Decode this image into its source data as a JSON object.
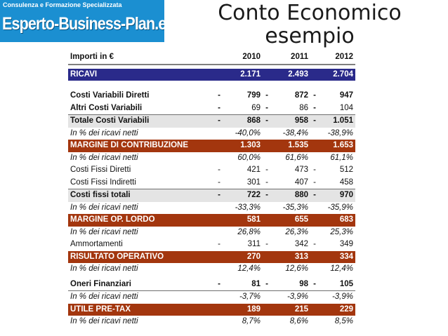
{
  "logo": {
    "tagline": "Consulenza e Formazione Specializzata",
    "brand": "Esperto-Business-Plan.eu",
    "bg_color": "#1b8fd1"
  },
  "title": {
    "line1": "Conto Economico",
    "line2": "esempio"
  },
  "table": {
    "header": {
      "label": "Importi in €",
      "years": [
        "2010",
        "2011",
        "2012"
      ]
    },
    "colors": {
      "blue_band": "#2a2a8a",
      "red_band": "#a3360e"
    },
    "rows": [
      {
        "label": "RICAVI",
        "values": [
          "2.171",
          "2.493",
          "2.704"
        ]
      },
      {
        "label": "Costi Variabili Diretti",
        "values": [
          "799",
          "872",
          "947"
        ]
      },
      {
        "label": "Altri Costi Variabili",
        "values": [
          "69",
          "86",
          "104"
        ]
      },
      {
        "label": "Totale Costi Variabili",
        "values": [
          "868",
          "958",
          "1.051"
        ]
      },
      {
        "label": "In % dei ricavi netti",
        "values": [
          "-40,0%",
          "-38,4%",
          "-38,9%"
        ]
      },
      {
        "label": "MARGINE DI CONTRIBUZIONE",
        "values": [
          "1.303",
          "1.535",
          "1.653"
        ]
      },
      {
        "label": "In % dei ricavi netti",
        "values": [
          "60,0%",
          "61,6%",
          "61,1%"
        ]
      },
      {
        "label": "Costi Fissi Diretti",
        "values": [
          "421",
          "473",
          "512"
        ]
      },
      {
        "label": "Costi Fissi Indiretti",
        "values": [
          "301",
          "407",
          "458"
        ]
      },
      {
        "label": "Costi fissi totali",
        "values": [
          "722",
          "880",
          "970"
        ]
      },
      {
        "label": "In % dei ricavi netti",
        "values": [
          "-33,3%",
          "-35,3%",
          "-35,9%"
        ]
      },
      {
        "label": "MARGINE OP. LORDO",
        "values": [
          "581",
          "655",
          "683"
        ]
      },
      {
        "label": "In % dei ricavi netti",
        "values": [
          "26,8%",
          "26,3%",
          "25,3%"
        ]
      },
      {
        "label": "Ammortamenti",
        "values": [
          "311",
          "342",
          "349"
        ]
      },
      {
        "label": "RISULTATO OPERATIVO",
        "values": [
          "270",
          "313",
          "334"
        ]
      },
      {
        "label": "In % dei ricavi netti",
        "values": [
          "12,4%",
          "12,6%",
          "12,4%"
        ]
      },
      {
        "label": "Oneri Finanziari",
        "values": [
          "81",
          "98",
          "105"
        ]
      },
      {
        "label": "In % dei ricavi netti",
        "values": [
          "-3,7%",
          "-3,9%",
          "-3,9%"
        ]
      },
      {
        "label": "UTILE PRE-TAX",
        "values": [
          "189",
          "215",
          "229"
        ]
      },
      {
        "label": "In % dei ricavi netti",
        "values": [
          "8,7%",
          "8,6%",
          "8,5%"
        ]
      }
    ],
    "dash": "-"
  }
}
